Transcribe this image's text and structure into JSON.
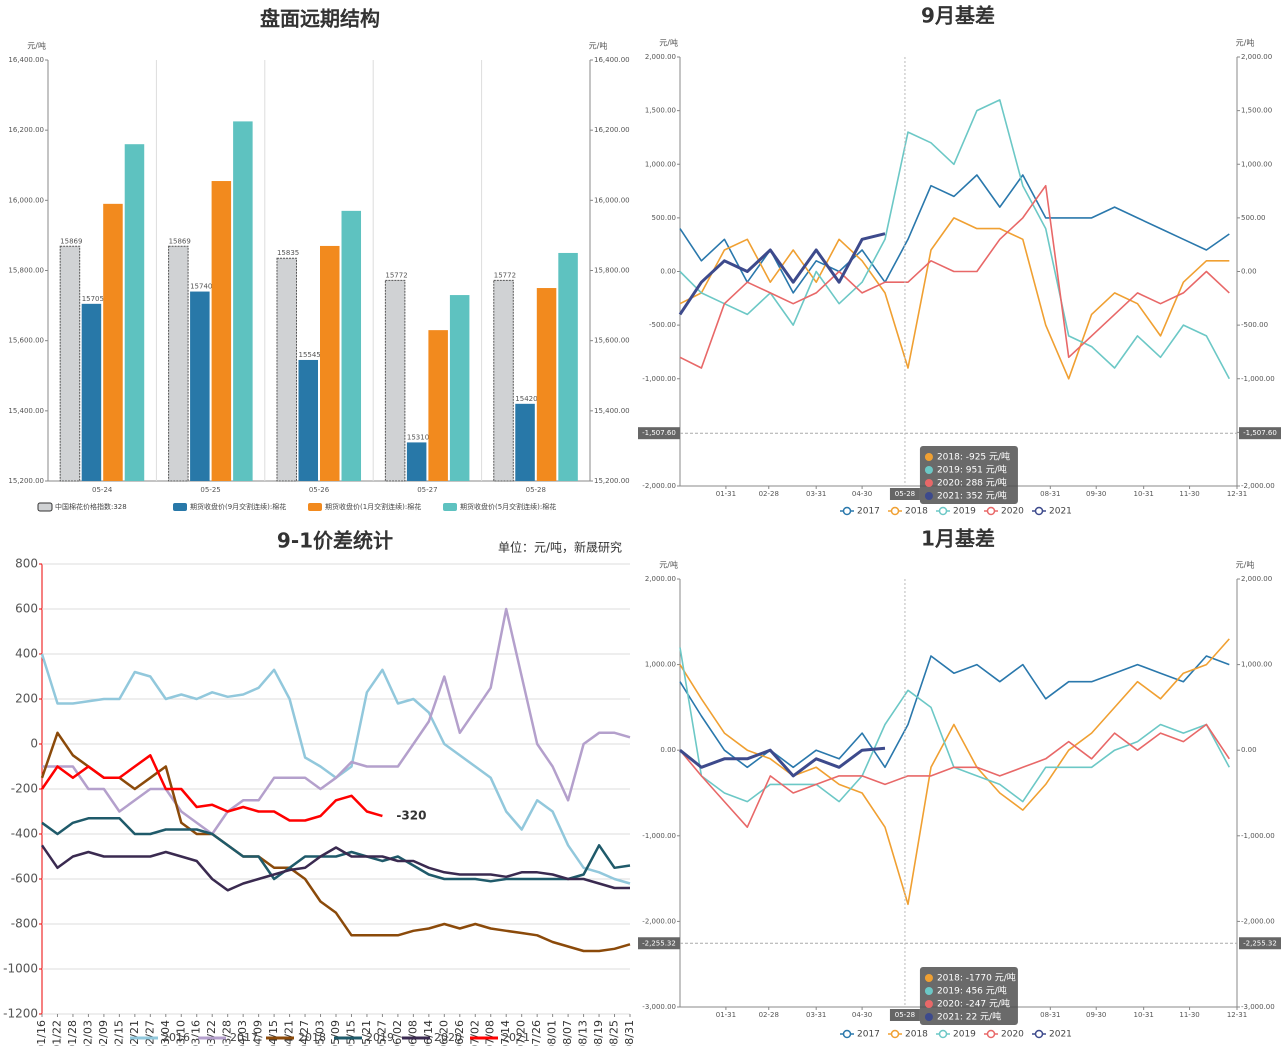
{
  "chart_data": [
    {
      "type": "bar",
      "title": "盘面远期结构",
      "y_unit": "元/吨",
      "y2_unit": "元/吨",
      "categories": [
        "05-24",
        "05-25",
        "05-26",
        "05-27",
        "05-28"
      ],
      "series": [
        {
          "name": "中国棉花价格指数:328",
          "color": "#d0d2d4",
          "show_labels": true,
          "values": [
            15869,
            15869,
            15835,
            15772,
            15772
          ]
        },
        {
          "name": "期货收盘价(9月交割连续):棉花",
          "color": "#2878a8",
          "show_labels": true,
          "values": [
            15705,
            15740,
            15545,
            15310,
            15420
          ]
        },
        {
          "name": "期货收盘价(1月交割连续):棉花",
          "color": "#f28a1e",
          "values": [
            15990,
            16055,
            15870,
            15630,
            15750
          ]
        },
        {
          "name": "期货收盘价(5月交割连续):棉花",
          "color": "#5ec2c0",
          "values": [
            16160,
            16225,
            15970,
            15730,
            15850
          ]
        }
      ],
      "ylim": [
        15200,
        16400
      ],
      "yticks": [
        {
          "value": 15200,
          "label": "15,200.00"
        },
        {
          "value": 15400,
          "label": "15,400.00"
        },
        {
          "value": 15600,
          "label": "15,600.00"
        },
        {
          "value": 15800,
          "label": "15,800.00"
        },
        {
          "value": 16000,
          "label": "16,000.00"
        },
        {
          "value": 16200,
          "label": "16,200.00"
        },
        {
          "value": 16400,
          "label": "16,400.00"
        }
      ],
      "grid": "vertical",
      "right_axis": true
    },
    {
      "type": "line",
      "title": "9月基差",
      "y_unit": "元/吨",
      "y2_unit": "元/吨",
      "x": [
        1,
        15,
        30,
        45,
        60,
        75,
        90,
        105,
        120,
        135,
        150,
        165,
        180,
        195,
        210,
        225,
        240,
        255,
        270,
        285,
        300,
        315,
        330,
        345,
        360
      ],
      "xlim": [
        1,
        365
      ],
      "xticks": [
        {
          "value": 31,
          "label": "01-31"
        },
        {
          "value": 59,
          "label": "02-28"
        },
        {
          "value": 90,
          "label": "03-31"
        },
        {
          "value": 120,
          "label": "04-30"
        },
        {
          "value": 243,
          "label": "08-31"
        },
        {
          "value": 273,
          "label": "09-30"
        },
        {
          "value": 304,
          "label": "10-31"
        },
        {
          "value": 334,
          "label": "11-30"
        },
        {
          "value": 365,
          "label": "12-31"
        }
      ],
      "series": [
        {
          "name": "2017",
          "color": "#2a78ac",
          "values": [
            400,
            100,
            300,
            -100,
            200,
            -200,
            100,
            0,
            200,
            -100,
            300,
            800,
            700,
            900,
            600,
            900,
            500,
            500,
            500,
            600,
            500,
            400,
            300,
            200,
            350
          ]
        },
        {
          "name": "2018",
          "color": "#f0a032",
          "values": [
            -300,
            -200,
            200,
            300,
            -100,
            200,
            -100,
            300,
            100,
            -200,
            -900,
            200,
            500,
            400,
            400,
            300,
            -500,
            -1000,
            -400,
            -200,
            -300,
            -600,
            -100,
            100,
            100
          ]
        },
        {
          "name": "2019",
          "color": "#6cc8c6",
          "values": [
            0,
            -200,
            -300,
            -400,
            -200,
            -500,
            0,
            -300,
            -100,
            300,
            1300,
            1200,
            1000,
            1500,
            1600,
            800,
            400,
            -600,
            -700,
            -900,
            -600,
            -800,
            -500,
            -600,
            -1000
          ]
        },
        {
          "name": "2020",
          "color": "#e86868",
          "values": [
            -800,
            -900,
            -300,
            -100,
            -200,
            -300,
            -200,
            0,
            -200,
            -100,
            -100,
            100,
            0,
            0,
            300,
            500,
            800,
            -800,
            -600,
            -400,
            -200,
            -300,
            -200,
            0,
            -200
          ]
        },
        {
          "name": "2021",
          "color": "#3d4a8c",
          "values": [
            -400,
            -100,
            100,
            0,
            200,
            -100,
            200,
            -100,
            300,
            352,
            null,
            null,
            null,
            null,
            null,
            null,
            null,
            null,
            null,
            null,
            null,
            null,
            null,
            null,
            null
          ]
        }
      ],
      "ylim": [
        -2000,
        2000
      ],
      "yticks": [
        {
          "value": -2000,
          "label": "-2,000.00"
        },
        {
          "value": -1500,
          "label": "-1,500.00"
        },
        {
          "value": -1000,
          "label": "-1,000.00"
        },
        {
          "value": -500,
          "label": "-500.00"
        },
        {
          "value": 0,
          "label": "0.00"
        },
        {
          "value": 500,
          "label": "500.00"
        },
        {
          "value": 1000,
          "label": "1,000.00"
        },
        {
          "value": 1500,
          "label": "1,500.00"
        },
        {
          "value": 2000,
          "label": "2,000.00"
        }
      ],
      "marker": {
        "value": -1507.6,
        "label": "-1,507.60"
      },
      "crosshair": {
        "value": 148,
        "label": "05-28"
      },
      "tooltip": [
        "2018: -925 元/吨",
        "2019: 951 元/吨",
        "2020: 288 元/吨",
        "2021: 352 元/吨"
      ],
      "grid": false,
      "right_axis": true,
      "legend_style": "circle"
    },
    {
      "type": "line",
      "title": "9-1价差统计",
      "subtitle": "单位：元/吨，新晟研究",
      "categories": [
        "01/16",
        "01/22",
        "01/28",
        "02/03",
        "02/09",
        "02/15",
        "02/21",
        "02/27",
        "03/04",
        "03/10",
        "03/16",
        "03/22",
        "03/28",
        "04/03",
        "04/09",
        "04/15",
        "04/21",
        "04/27",
        "05/03",
        "05/09",
        "05/15",
        "05/21",
        "05/27",
        "06/02",
        "06/08",
        "06/14",
        "06/20",
        "06/26",
        "07/02",
        "07/08",
        "07/14",
        "07/20",
        "07/26",
        "08/01",
        "08/07",
        "08/13",
        "08/19",
        "08/25",
        "08/31"
      ],
      "series": [
        {
          "name": "2016",
          "color": "#92c8dc",
          "values": [
            400,
            180,
            180,
            190,
            200,
            200,
            320,
            300,
            200,
            220,
            200,
            230,
            210,
            220,
            250,
            330,
            200,
            -60,
            -100,
            -150,
            -100,
            230,
            330,
            180,
            200,
            140,
            0,
            -50,
            -100,
            -150,
            -300,
            -380,
            -250,
            -300,
            -450,
            -550,
            -570,
            -600,
            -620
          ]
        },
        {
          "name": "2017",
          "color": "#b4a0cc",
          "values": [
            -100,
            -100,
            -100,
            -200,
            -200,
            -300,
            -250,
            -200,
            -200,
            -300,
            -350,
            -400,
            -300,
            -250,
            -250,
            -150,
            -150,
            -150,
            -200,
            -150,
            -80,
            -100,
            -100,
            -100,
            0,
            100,
            300,
            50,
            150,
            250,
            600,
            300,
            0,
            -100,
            -250,
            0,
            50,
            50,
            30
          ]
        },
        {
          "name": "2018",
          "color": "#8b4a0a",
          "values": [
            -150,
            50,
            -50,
            -100,
            -150,
            -150,
            -200,
            -150,
            -100,
            -350,
            -400,
            -400,
            -450,
            -500,
            -500,
            -550,
            -550,
            -600,
            -700,
            -750,
            -850,
            -850,
            -850,
            -850,
            -830,
            -820,
            -800,
            -820,
            -800,
            -820,
            -830,
            -840,
            -850,
            -880,
            -900,
            -920,
            -920,
            -910,
            -890
          ]
        },
        {
          "name": "2019",
          "color": "#1f5a6a",
          "values": [
            -350,
            -400,
            -350,
            -330,
            -330,
            -330,
            -400,
            -400,
            -380,
            -380,
            -380,
            -400,
            -450,
            -500,
            -500,
            -600,
            -550,
            -500,
            -500,
            -500,
            -480,
            -500,
            -520,
            -500,
            -540,
            -580,
            -600,
            -600,
            -600,
            -610,
            -600,
            -600,
            -600,
            -600,
            -600,
            -580,
            -450,
            -550,
            -540
          ]
        },
        {
          "name": "2020",
          "color": "#3a2a50",
          "values": [
            -450,
            -550,
            -500,
            -480,
            -500,
            -500,
            -500,
            -500,
            -480,
            -500,
            -520,
            -600,
            -650,
            -620,
            -600,
            -580,
            -560,
            -550,
            -500,
            -460,
            -500,
            -500,
            -500,
            -520,
            -520,
            -550,
            -570,
            -580,
            -580,
            -580,
            -590,
            -570,
            -570,
            -580,
            -600,
            -600,
            -620,
            -640,
            -640
          ]
        },
        {
          "name": "2021",
          "color": "#ff0000",
          "values": [
            -200,
            -100,
            -150,
            -100,
            -150,
            -150,
            -100,
            -50,
            -200,
            -200,
            -280,
            -270,
            -300,
            -280,
            -300,
            -300,
            -340,
            -340,
            -320,
            -250,
            -230,
            -300,
            -320,
            null,
            null,
            null,
            null,
            null,
            null,
            null,
            null,
            null,
            null,
            null,
            null,
            null,
            null,
            null,
            null
          ]
        }
      ],
      "annotation": {
        "text": "-320",
        "value": -320
      },
      "ylim": [
        -1200,
        800
      ],
      "yticks": [
        -1200,
        -1000,
        -800,
        -600,
        -400,
        -200,
        0,
        200,
        400,
        600,
        800
      ],
      "grid": "horizontal",
      "legend_style": "line",
      "rotate_x": true
    },
    {
      "type": "line",
      "title": "1月基差",
      "y_unit": "元/吨",
      "y2_unit": "元/吨",
      "x": [
        1,
        15,
        30,
        45,
        60,
        75,
        90,
        105,
        120,
        135,
        150,
        165,
        180,
        195,
        210,
        225,
        240,
        255,
        270,
        285,
        300,
        315,
        330,
        345,
        360
      ],
      "xlim": [
        1,
        365
      ],
      "xticks": [
        {
          "value": 31,
          "label": "01-31"
        },
        {
          "value": 59,
          "label": "02-28"
        },
        {
          "value": 90,
          "label": "03-31"
        },
        {
          "value": 120,
          "label": "04-30"
        },
        {
          "value": 243,
          "label": "08-31"
        },
        {
          "value": 273,
          "label": "09-30"
        },
        {
          "value": 304,
          "label": "10-31"
        },
        {
          "value": 334,
          "label": "11-30"
        },
        {
          "value": 365,
          "label": "12-31"
        }
      ],
      "series": [
        {
          "name": "2017",
          "color": "#2a78ac",
          "values": [
            800,
            400,
            0,
            -200,
            0,
            -200,
            0,
            -100,
            200,
            -200,
            300,
            1100,
            900,
            1000,
            800,
            1000,
            600,
            800,
            800,
            900,
            1000,
            900,
            800,
            1100,
            1000
          ]
        },
        {
          "name": "2018",
          "color": "#f0a032",
          "values": [
            1000,
            600,
            200,
            0,
            -100,
            -300,
            -200,
            -400,
            -500,
            -900,
            -1800,
            -200,
            300,
            -200,
            -500,
            -700,
            -400,
            0,
            200,
            500,
            800,
            600,
            900,
            1000,
            1300
          ]
        },
        {
          "name": "2019",
          "color": "#6cc8c6",
          "values": [
            1200,
            -300,
            -500,
            -600,
            -400,
            -400,
            -400,
            -600,
            -300,
            300,
            700,
            500,
            -200,
            -300,
            -400,
            -600,
            -200,
            -200,
            -200,
            0,
            100,
            300,
            200,
            300,
            -200
          ]
        },
        {
          "name": "2020",
          "color": "#e86868",
          "values": [
            0,
            -300,
            -600,
            -900,
            -300,
            -500,
            -400,
            -300,
            -300,
            -400,
            -300,
            -300,
            -200,
            -200,
            -300,
            -200,
            -100,
            100,
            -100,
            200,
            0,
            200,
            100,
            300,
            -100
          ]
        },
        {
          "name": "2021",
          "color": "#3d4a8c",
          "values": [
            0,
            -200,
            -100,
            -100,
            0,
            -300,
            -100,
            -200,
            0,
            22,
            null,
            null,
            null,
            null,
            null,
            null,
            null,
            null,
            null,
            null,
            null,
            null,
            null,
            null,
            null
          ]
        }
      ],
      "ylim": [
        -3000,
        2000
      ],
      "yticks": [
        {
          "value": -3000,
          "label": "-3,000.00"
        },
        {
          "value": -2000,
          "label": "-2,000.00"
        },
        {
          "value": -1000,
          "label": "-1,000.00"
        },
        {
          "value": 0,
          "label": "0.00"
        },
        {
          "value": 1000,
          "label": "1,000.00"
        },
        {
          "value": 2000,
          "label": "2,000.00"
        }
      ],
      "marker": {
        "value": -2255.32,
        "label": "-2,255.32"
      },
      "crosshair": {
        "value": 148,
        "label": "05-28"
      },
      "tooltip": [
        "2018: -1770 元/吨",
        "2019: 456 元/吨",
        "2020: -247 元/吨",
        "2021: 22 元/吨"
      ],
      "grid": false,
      "right_axis": true,
      "legend_style": "circle"
    }
  ]
}
